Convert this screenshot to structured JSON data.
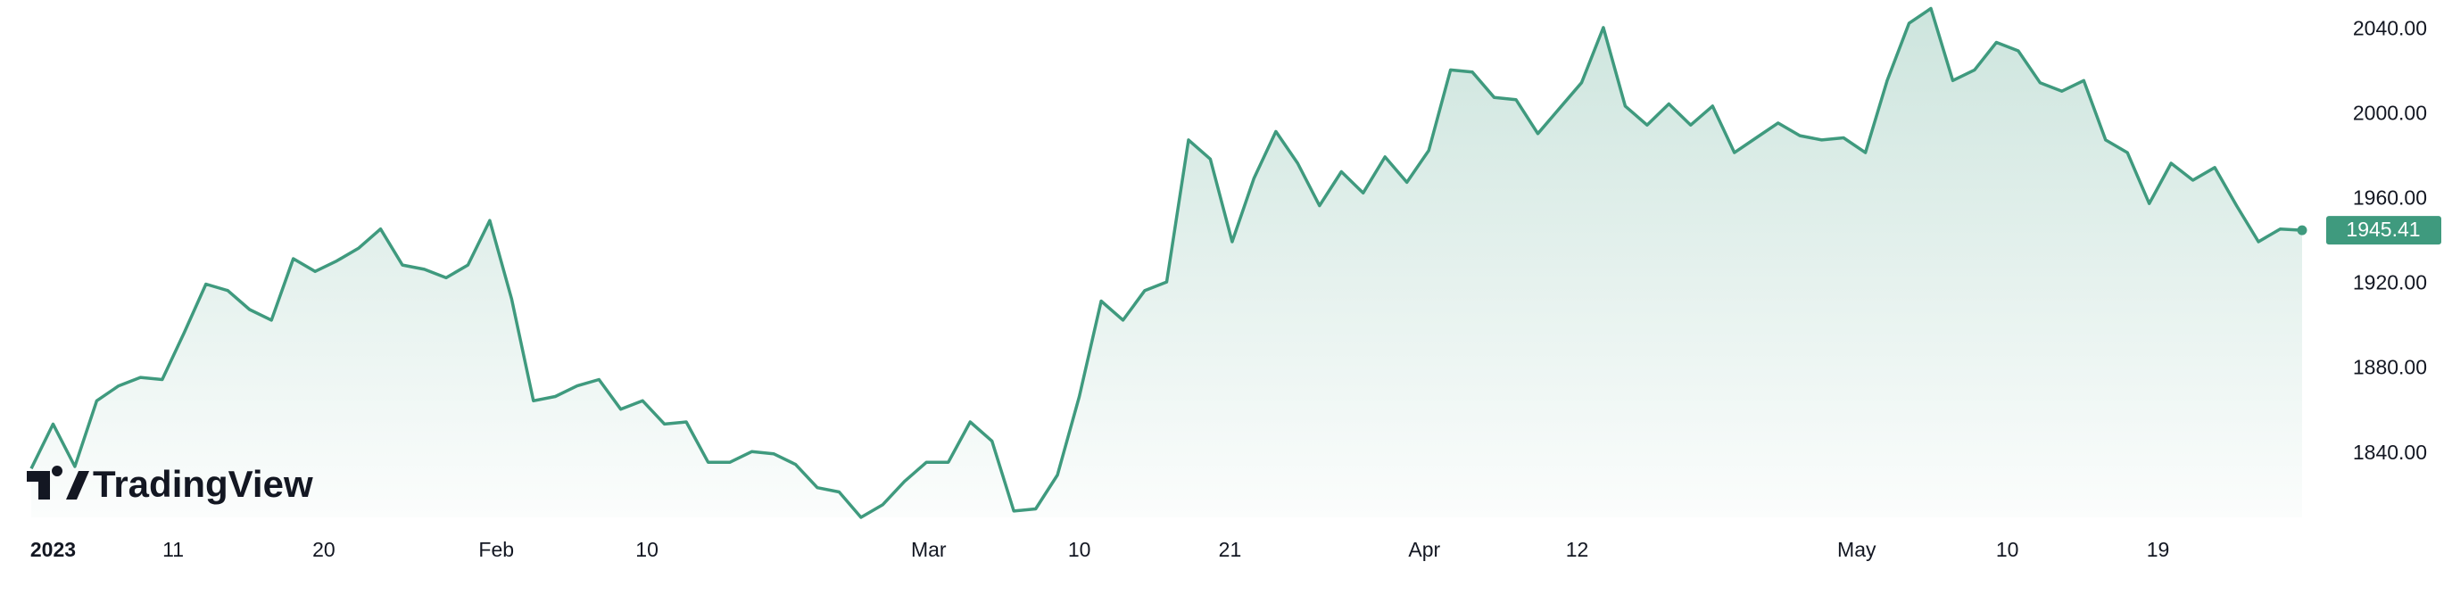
{
  "chart_data": {
    "type": "line",
    "watermark": "TradingView",
    "color": "#3f9a7e",
    "values": [
      1833,
      1854,
      1834,
      1865,
      1872,
      1876,
      1875,
      1897,
      1920,
      1917,
      1908,
      1903,
      1932,
      1926,
      1931,
      1937,
      1946,
      1929,
      1927,
      1923,
      1929,
      1950,
      1913,
      1865,
      1867,
      1872,
      1875,
      1861,
      1865,
      1854,
      1855,
      1836,
      1836,
      1841,
      1840,
      1835,
      1824,
      1822,
      1810,
      1816,
      1827,
      1836,
      1836,
      1855,
      1846,
      1813,
      1814,
      1830,
      1867,
      1912,
      1903,
      1917,
      1921,
      1988,
      1979,
      1940,
      1970,
      1992,
      1977,
      1957,
      1973,
      1963,
      1980,
      1968,
      1983,
      2021,
      2020,
      2008,
      2007,
      1991,
      2003,
      2015,
      2041,
      2004,
      1995,
      2005,
      1995,
      2004,
      1982,
      1989,
      1996,
      1990,
      1988,
      1989,
      1982,
      2016,
      2043,
      2050,
      2016,
      2021,
      2034,
      2030,
      2015,
      2011,
      2016,
      1988,
      1982,
      1958,
      1977,
      1969,
      1975,
      1957,
      1940,
      1946,
      1945.41
    ],
    "xlim": [
      0,
      104
    ],
    "xticks": [
      {
        "value": 1,
        "label": "2023"
      },
      {
        "value": 6.5,
        "label": "11"
      },
      {
        "value": 13.4,
        "label": "20"
      },
      {
        "value": 21.3,
        "label": "Feb"
      },
      {
        "value": 28.2,
        "label": "10"
      },
      {
        "value": 41.1,
        "label": "Mar"
      },
      {
        "value": 48,
        "label": "10"
      },
      {
        "value": 54.9,
        "label": "21"
      },
      {
        "value": 63.8,
        "label": "Apr"
      },
      {
        "value": 70.8,
        "label": "12"
      },
      {
        "value": 83.6,
        "label": "May"
      },
      {
        "value": 90.5,
        "label": "10"
      },
      {
        "value": 97.4,
        "label": "19"
      }
    ],
    "ylim": [
      1810,
      2054
    ],
    "yticks": [
      {
        "value": 1840,
        "label": "1840.00"
      },
      {
        "value": 1880,
        "label": "1880.00"
      },
      {
        "value": 1920,
        "label": "1920.00"
      },
      {
        "value": 1960,
        "label": "1960.00"
      },
      {
        "value": 2000,
        "label": "2000.00"
      },
      {
        "value": 2040,
        "label": "2040.00"
      }
    ]
  }
}
